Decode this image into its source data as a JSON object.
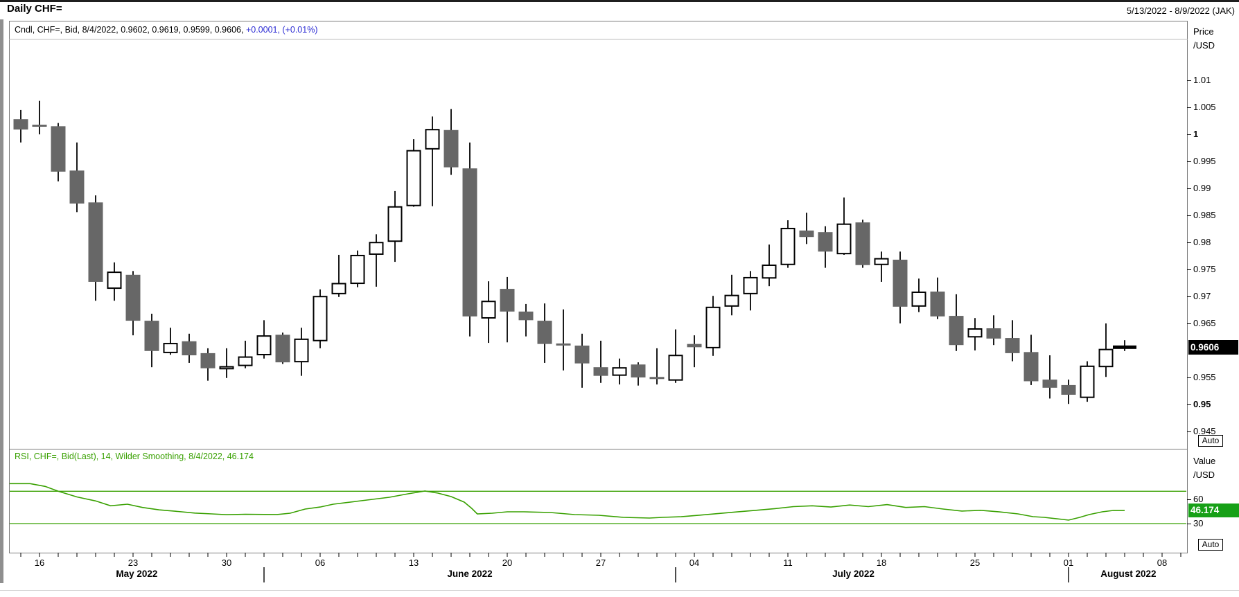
{
  "header": {
    "title": "Daily CHF=",
    "date_range": "5/13/2022 - 8/9/2022 (JAK)"
  },
  "main_panel": {
    "legend_black": "Cndl, CHF=, Bid, 8/4/2022, 0.9602, 0.9619, 0.9599, 0.9606,",
    "legend_blue": "+0.0001, (+0.01%)",
    "axis_title_line1": "Price",
    "axis_title_line2": "/USD",
    "ticks": [
      {
        "label": "1.01",
        "price": 1.01,
        "bold": false
      },
      {
        "label": "1.005",
        "price": 1.005,
        "bold": false
      },
      {
        "label": "1",
        "price": 1.0,
        "bold": true
      },
      {
        "label": "0.995",
        "price": 0.995,
        "bold": false
      },
      {
        "label": "0.99",
        "price": 0.99,
        "bold": false
      },
      {
        "label": "0.985",
        "price": 0.985,
        "bold": false
      },
      {
        "label": "0.98",
        "price": 0.98,
        "bold": false
      },
      {
        "label": "0.975",
        "price": 0.975,
        "bold": false
      },
      {
        "label": "0.97",
        "price": 0.97,
        "bold": false
      },
      {
        "label": "0.965",
        "price": 0.965,
        "bold": false
      },
      {
        "label": "0.955",
        "price": 0.955,
        "bold": false
      },
      {
        "label": "0.95",
        "price": 0.95,
        "bold": true
      },
      {
        "label": "0.945",
        "price": 0.945,
        "bold": false
      }
    ],
    "last_price_label": "0.9606",
    "last_price": 0.9606,
    "auto_label": "Auto"
  },
  "rsi_panel": {
    "legend": "RSI, CHF=, Bid(Last), 14, Wilder Smoothing, 8/4/2022, 46.174",
    "axis_title_line1": "Value",
    "axis_title_line2": "/USD",
    "ticks": [
      {
        "label": "60",
        "value": 60
      },
      {
        "label": "30",
        "value": 30
      }
    ],
    "levels": [
      70,
      30
    ],
    "last_value_label": "46.174",
    "last_value": 46.174,
    "auto_label": "Auto"
  },
  "x_axis": {
    "week_labels": [
      {
        "label": "16",
        "d": 0
      },
      {
        "label": "23",
        "d": 5
      },
      {
        "label": "30",
        "d": 10
      },
      {
        "label": "06",
        "d": 15
      },
      {
        "label": "13",
        "d": 20
      },
      {
        "label": "20",
        "d": 25
      },
      {
        "label": "27",
        "d": 30
      },
      {
        "label": "04",
        "d": 35
      },
      {
        "label": "11",
        "d": 40
      },
      {
        "label": "18",
        "d": 45
      },
      {
        "label": "25",
        "d": 50
      },
      {
        "label": "01",
        "d": 55
      },
      {
        "label": "08",
        "d": 60
      }
    ],
    "month_labels": [
      {
        "label": "May 2022",
        "d": 5.2
      },
      {
        "label": "June 2022",
        "d": 23.0
      },
      {
        "label": "July 2022",
        "d": 43.5
      },
      {
        "label": "August 2022",
        "d": 58.2
      }
    ],
    "month_separators_d": [
      12,
      34,
      55
    ],
    "minor_tick_day_range": [
      -1,
      61
    ]
  },
  "colors": {
    "up_fill": "#ffffff",
    "down_fill": "#676767",
    "candle_outline": "#000000",
    "wick": "#1a1a1a",
    "rsi_green": "#38a000",
    "badge_green": "#17a017",
    "legend_blue": "#2b2bd4",
    "price_badge_bg": "#000000",
    "border_grey": "#7a7a7a"
  },
  "chart_data": [
    {
      "type": "candlestick",
      "title": "Cndl, CHF=, Bid",
      "instrument": "CHF=",
      "interval": "Daily",
      "ylabel": "Price /USD",
      "ylim": [
        0.9425,
        1.0135
      ],
      "y_ticks": [
        1.01,
        1.005,
        1.0,
        0.995,
        0.99,
        0.985,
        0.98,
        0.975,
        0.97,
        0.965,
        0.96,
        0.955,
        0.95,
        0.945
      ],
      "last_quote": {
        "date": "8/4/2022",
        "open": 0.9602,
        "high": 0.9619,
        "low": 0.9599,
        "close": 0.9606,
        "change": "+0.0001",
        "change_pct": "(+0.01%)"
      },
      "candles": [
        {
          "d": -1,
          "date": "5/13",
          "o": 1.0028,
          "h": 1.0045,
          "l": 0.9985,
          "c": 1.0009
        },
        {
          "d": 0,
          "date": "5/16",
          "o": 1.0016,
          "h": 1.0062,
          "l": 1.0,
          "c": 1.0013
        },
        {
          "d": 1,
          "date": "5/17",
          "o": 1.0015,
          "h": 1.0021,
          "l": 0.9913,
          "c": 0.9931
        },
        {
          "d": 2,
          "date": "5/18",
          "o": 0.9933,
          "h": 0.9985,
          "l": 0.9856,
          "c": 0.9872
        },
        {
          "d": 3,
          "date": "5/19",
          "o": 0.9874,
          "h": 0.9887,
          "l": 0.9692,
          "c": 0.9727
        },
        {
          "d": 4,
          "date": "5/20",
          "o": 0.9714,
          "h": 0.9763,
          "l": 0.9692,
          "c": 0.9746
        },
        {
          "d": 5,
          "date": "5/23",
          "o": 0.974,
          "h": 0.9747,
          "l": 0.9628,
          "c": 0.9655
        },
        {
          "d": 6,
          "date": "5/24",
          "o": 0.9655,
          "h": 0.9668,
          "l": 0.9569,
          "c": 0.9599
        },
        {
          "d": 7,
          "date": "5/25",
          "o": 0.9595,
          "h": 0.9642,
          "l": 0.9592,
          "c": 0.9614
        },
        {
          "d": 8,
          "date": "5/26",
          "o": 0.9617,
          "h": 0.9631,
          "l": 0.9577,
          "c": 0.9591
        },
        {
          "d": 9,
          "date": "5/27",
          "o": 0.9595,
          "h": 0.9604,
          "l": 0.9544,
          "c": 0.9567
        },
        {
          "d": 10,
          "date": "5/30",
          "o": 0.9565,
          "h": 0.9604,
          "l": 0.9549,
          "c": 0.9571
        },
        {
          "d": 11,
          "date": "5/31",
          "o": 0.9571,
          "h": 0.9618,
          "l": 0.9567,
          "c": 0.9589
        },
        {
          "d": 12,
          "date": "6/1",
          "o": 0.9591,
          "h": 0.9656,
          "l": 0.9585,
          "c": 0.9628
        },
        {
          "d": 13,
          "date": "6/2",
          "o": 0.9629,
          "h": 0.9633,
          "l": 0.9575,
          "c": 0.9578
        },
        {
          "d": 14,
          "date": "6/3",
          "o": 0.9578,
          "h": 0.9642,
          "l": 0.9553,
          "c": 0.9622
        },
        {
          "d": 15,
          "date": "6/6",
          "o": 0.9617,
          "h": 0.9713,
          "l": 0.9604,
          "c": 0.9701
        },
        {
          "d": 16,
          "date": "6/7",
          "o": 0.9704,
          "h": 0.9777,
          "l": 0.9699,
          "c": 0.9725
        },
        {
          "d": 17,
          "date": "6/8",
          "o": 0.9723,
          "h": 0.9785,
          "l": 0.9717,
          "c": 0.9777
        },
        {
          "d": 18,
          "date": "6/9",
          "o": 0.9777,
          "h": 0.9815,
          "l": 0.9718,
          "c": 0.9801
        },
        {
          "d": 19,
          "date": "6/10",
          "o": 0.9801,
          "h": 0.9895,
          "l": 0.9764,
          "c": 0.9867
        },
        {
          "d": 20,
          "date": "6/13",
          "o": 0.9867,
          "h": 0.9991,
          "l": 0.9866,
          "c": 0.9971
        },
        {
          "d": 21,
          "date": "6/14",
          "o": 0.9972,
          "h": 1.0033,
          "l": 0.9867,
          "c": 1.001
        },
        {
          "d": 22,
          "date": "6/15",
          "o": 1.0008,
          "h": 1.0047,
          "l": 0.9925,
          "c": 0.9939
        },
        {
          "d": 23,
          "date": "6/16",
          "o": 0.9937,
          "h": 0.9985,
          "l": 0.9626,
          "c": 0.9663
        },
        {
          "d": 24,
          "date": "6/17",
          "o": 0.9659,
          "h": 0.9728,
          "l": 0.9614,
          "c": 0.9692
        },
        {
          "d": 25,
          "date": "6/20",
          "o": 0.9714,
          "h": 0.9736,
          "l": 0.9615,
          "c": 0.9672
        },
        {
          "d": 26,
          "date": "6/21",
          "o": 0.9672,
          "h": 0.9686,
          "l": 0.9626,
          "c": 0.9656
        },
        {
          "d": 27,
          "date": "6/22",
          "o": 0.9655,
          "h": 0.9687,
          "l": 0.9577,
          "c": 0.9612
        },
        {
          "d": 28,
          "date": "6/23",
          "o": 0.9611,
          "h": 0.9676,
          "l": 0.9563,
          "c": 0.961
        },
        {
          "d": 29,
          "date": "6/24",
          "o": 0.9609,
          "h": 0.9631,
          "l": 0.9531,
          "c": 0.9576
        },
        {
          "d": 30,
          "date": "6/27",
          "o": 0.9569,
          "h": 0.9618,
          "l": 0.954,
          "c": 0.9553
        },
        {
          "d": 31,
          "date": "6/28",
          "o": 0.9553,
          "h": 0.9585,
          "l": 0.9537,
          "c": 0.9569
        },
        {
          "d": 32,
          "date": "6/29",
          "o": 0.9574,
          "h": 0.9578,
          "l": 0.9535,
          "c": 0.955
        },
        {
          "d": 33,
          "date": "6/30",
          "o": 0.9549,
          "h": 0.9604,
          "l": 0.9537,
          "c": 0.9548
        },
        {
          "d": 34,
          "date": "7/1",
          "o": 0.9544,
          "h": 0.9639,
          "l": 0.954,
          "c": 0.9592
        },
        {
          "d": 35,
          "date": "7/4",
          "o": 0.9612,
          "h": 0.9628,
          "l": 0.9569,
          "c": 0.9606
        },
        {
          "d": 36,
          "date": "7/5",
          "o": 0.9604,
          "h": 0.9701,
          "l": 0.959,
          "c": 0.9681
        },
        {
          "d": 37,
          "date": "7/6",
          "o": 0.9681,
          "h": 0.974,
          "l": 0.9665,
          "c": 0.9703
        },
        {
          "d": 38,
          "date": "7/7",
          "o": 0.9704,
          "h": 0.9747,
          "l": 0.9674,
          "c": 0.9736
        },
        {
          "d": 39,
          "date": "7/8",
          "o": 0.9733,
          "h": 0.9796,
          "l": 0.9719,
          "c": 0.9759
        },
        {
          "d": 40,
          "date": "7/11",
          "o": 0.9758,
          "h": 0.9841,
          "l": 0.9753,
          "c": 0.9827
        },
        {
          "d": 41,
          "date": "7/12",
          "o": 0.9822,
          "h": 0.9855,
          "l": 0.9797,
          "c": 0.981
        },
        {
          "d": 42,
          "date": "7/13",
          "o": 0.9819,
          "h": 0.983,
          "l": 0.9753,
          "c": 0.9783
        },
        {
          "d": 43,
          "date": "7/14",
          "o": 0.9778,
          "h": 0.9883,
          "l": 0.9777,
          "c": 0.9835
        },
        {
          "d": 44,
          "date": "7/15",
          "o": 0.9837,
          "h": 0.9842,
          "l": 0.9753,
          "c": 0.9758
        },
        {
          "d": 45,
          "date": "7/18",
          "o": 0.9758,
          "h": 0.9783,
          "l": 0.9727,
          "c": 0.9771
        },
        {
          "d": 46,
          "date": "7/19",
          "o": 0.9768,
          "h": 0.9783,
          "l": 0.965,
          "c": 0.9681
        },
        {
          "d": 47,
          "date": "7/20",
          "o": 0.9681,
          "h": 0.9733,
          "l": 0.9671,
          "c": 0.9709
        },
        {
          "d": 48,
          "date": "7/21",
          "o": 0.9709,
          "h": 0.9735,
          "l": 0.9658,
          "c": 0.9663
        },
        {
          "d": 49,
          "date": "7/22",
          "o": 0.9664,
          "h": 0.9704,
          "l": 0.9599,
          "c": 0.961
        },
        {
          "d": 50,
          "date": "7/25",
          "o": 0.9624,
          "h": 0.966,
          "l": 0.96,
          "c": 0.9641
        },
        {
          "d": 51,
          "date": "7/26",
          "o": 0.9641,
          "h": 0.9665,
          "l": 0.961,
          "c": 0.9622
        },
        {
          "d": 52,
          "date": "7/27",
          "o": 0.9623,
          "h": 0.9656,
          "l": 0.958,
          "c": 0.9595
        },
        {
          "d": 53,
          "date": "7/28",
          "o": 0.9597,
          "h": 0.9629,
          "l": 0.9536,
          "c": 0.9543
        },
        {
          "d": 54,
          "date": "7/29",
          "o": 0.9546,
          "h": 0.9591,
          "l": 0.9511,
          "c": 0.9531
        },
        {
          "d": 55,
          "date": "8/1",
          "o": 0.9536,
          "h": 0.9546,
          "l": 0.9501,
          "c": 0.9518
        },
        {
          "d": 56,
          "date": "8/2",
          "o": 0.9512,
          "h": 0.958,
          "l": 0.9505,
          "c": 0.9572
        },
        {
          "d": 57,
          "date": "8/3",
          "o": 0.9569,
          "h": 0.965,
          "l": 0.9551,
          "c": 0.9603
        },
        {
          "d": 58,
          "date": "8/4",
          "o": 0.9602,
          "h": 0.9619,
          "l": 0.9599,
          "c": 0.9606,
          "marker": "cross"
        }
      ]
    },
    {
      "type": "line",
      "name": "RSI 14 Wilder Smoothing",
      "ylabel": "Value /USD",
      "y_ticks": [
        60,
        30
      ],
      "levels": [
        70,
        30
      ],
      "last_value": 46.174,
      "points_day_value": [
        [
          -1.6,
          79.5
        ],
        [
          -0.5,
          79.5
        ],
        [
          0.3,
          76
        ],
        [
          1,
          70
        ],
        [
          2,
          63
        ],
        [
          3,
          58
        ],
        [
          3.8,
          52
        ],
        [
          4.7,
          54
        ],
        [
          5.5,
          50
        ],
        [
          6.4,
          47
        ],
        [
          7.4,
          45
        ],
        [
          8.3,
          43
        ],
        [
          9.2,
          42
        ],
        [
          10,
          41
        ],
        [
          11,
          41.5
        ],
        [
          12,
          41.3
        ],
        [
          12.7,
          41.2
        ],
        [
          13.4,
          42.9
        ],
        [
          14.2,
          48
        ],
        [
          15,
          50.5
        ],
        [
          15.7,
          54
        ],
        [
          17.2,
          58.3
        ],
        [
          18.7,
          62.6
        ],
        [
          19.7,
          66.9
        ],
        [
          20.6,
          70.4
        ],
        [
          21.3,
          67.7
        ],
        [
          22,
          63.4
        ],
        [
          22.7,
          56.6
        ],
        [
          23.1,
          48.9
        ],
        [
          23.4,
          42
        ],
        [
          24.2,
          42.9
        ],
        [
          25,
          44.6
        ],
        [
          25.9,
          44.6
        ],
        [
          27.3,
          43.7
        ],
        [
          28.6,
          41.1
        ],
        [
          29.9,
          40.3
        ],
        [
          31.2,
          37.7
        ],
        [
          32.6,
          36.9
        ],
        [
          33.3,
          37.7
        ],
        [
          34.3,
          38.5
        ],
        [
          35.3,
          40.5
        ],
        [
          36.3,
          42.5
        ],
        [
          37.3,
          44.5
        ],
        [
          38.3,
          46.5
        ],
        [
          39.3,
          48.5
        ],
        [
          40.3,
          51
        ],
        [
          41.3,
          52
        ],
        [
          42.3,
          50.5
        ],
        [
          43.3,
          53
        ],
        [
          44.3,
          51
        ],
        [
          45.3,
          53.5
        ],
        [
          46.3,
          50
        ],
        [
          47.3,
          51
        ],
        [
          48.3,
          48
        ],
        [
          49.3,
          45.5
        ],
        [
          50.3,
          46.5
        ],
        [
          51.3,
          44.5
        ],
        [
          52.3,
          42
        ],
        [
          53.1,
          38.6
        ],
        [
          53.7,
          37.7
        ],
        [
          54.7,
          35.1
        ],
        [
          55,
          34.3
        ],
        [
          55.6,
          37.7
        ],
        [
          56.1,
          41.1
        ],
        [
          56.8,
          44.6
        ],
        [
          57.4,
          46.3
        ],
        [
          58,
          46.2
        ]
      ]
    }
  ]
}
